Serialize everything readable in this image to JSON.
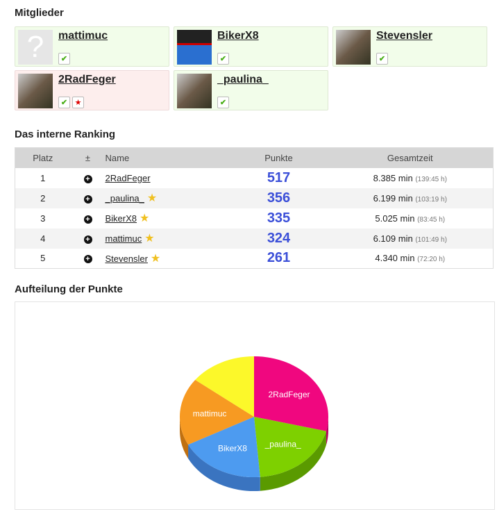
{
  "members": {
    "title": "Mitglieder",
    "items": [
      {
        "name": "mattimuc",
        "badges": [
          "check"
        ],
        "highlight": false,
        "avatar": "placeholder"
      },
      {
        "name": "BikerX8",
        "badges": [
          "check"
        ],
        "highlight": false,
        "avatar": "logo"
      },
      {
        "name": "Stevensler",
        "badges": [
          "check"
        ],
        "highlight": false,
        "avatar": "photo"
      },
      {
        "name": "2RadFeger",
        "badges": [
          "check",
          "star"
        ],
        "highlight": true,
        "avatar": "photo"
      },
      {
        "name": "_paulina_",
        "badges": [
          "check"
        ],
        "highlight": false,
        "avatar": "photo"
      }
    ]
  },
  "ranking": {
    "title": "Das interne Ranking",
    "headers": [
      "Platz",
      "±",
      "Name",
      "Punkte",
      "Gesamtzeit"
    ],
    "rows": [
      {
        "rank": "1",
        "name": "2RadFeger",
        "star": false,
        "points": "517",
        "time": "8.385 min",
        "hours": "(139:45 h)"
      },
      {
        "rank": "2",
        "name": "_paulina_",
        "star": true,
        "points": "356",
        "time": "6.199 min",
        "hours": "(103:19 h)"
      },
      {
        "rank": "3",
        "name": "BikerX8",
        "star": true,
        "points": "335",
        "time": "5.025 min",
        "hours": "(83:45 h)"
      },
      {
        "rank": "4",
        "name": "mattimuc",
        "star": true,
        "points": "324",
        "time": "6.109 min",
        "hours": "(101:49 h)"
      },
      {
        "rank": "5",
        "name": "Stevensler",
        "star": true,
        "points": "261",
        "time": "4.340 min",
        "hours": "(72:20 h)"
      }
    ]
  },
  "chart_section": {
    "title": "Aufteilung der Punkte"
  },
  "chart_data": {
    "type": "pie",
    "style": "3d",
    "labels": [
      "2RadFeger",
      "_paulina_",
      "BikerX8",
      "mattimuc",
      ""
    ],
    "values": [
      517,
      356,
      335,
      324,
      261
    ],
    "colors": [
      "#f0077f",
      "#7ed000",
      "#4d9bf0",
      "#f79a22",
      "#fcf82a"
    ],
    "side_colors": [
      "#b8005f",
      "#5a9a00",
      "#3a74c0",
      "#c07010",
      "#c8c41a"
    ]
  }
}
